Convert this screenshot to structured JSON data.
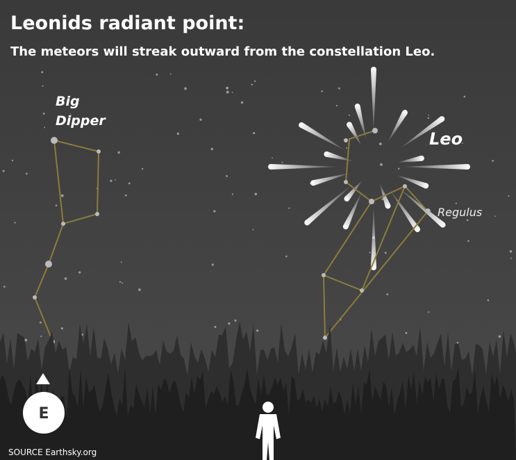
{
  "header": {
    "title": "Leonids radiant point:",
    "subtitle": "The meteors will streak outward from the constellation Leo."
  },
  "labels": {
    "big_dipper": [
      "Big",
      "Dipper"
    ],
    "leo": "Leo",
    "regulus": "Regulus"
  },
  "compass": {
    "direction": "E"
  },
  "source": "SOURCE Earthsky.org"
}
